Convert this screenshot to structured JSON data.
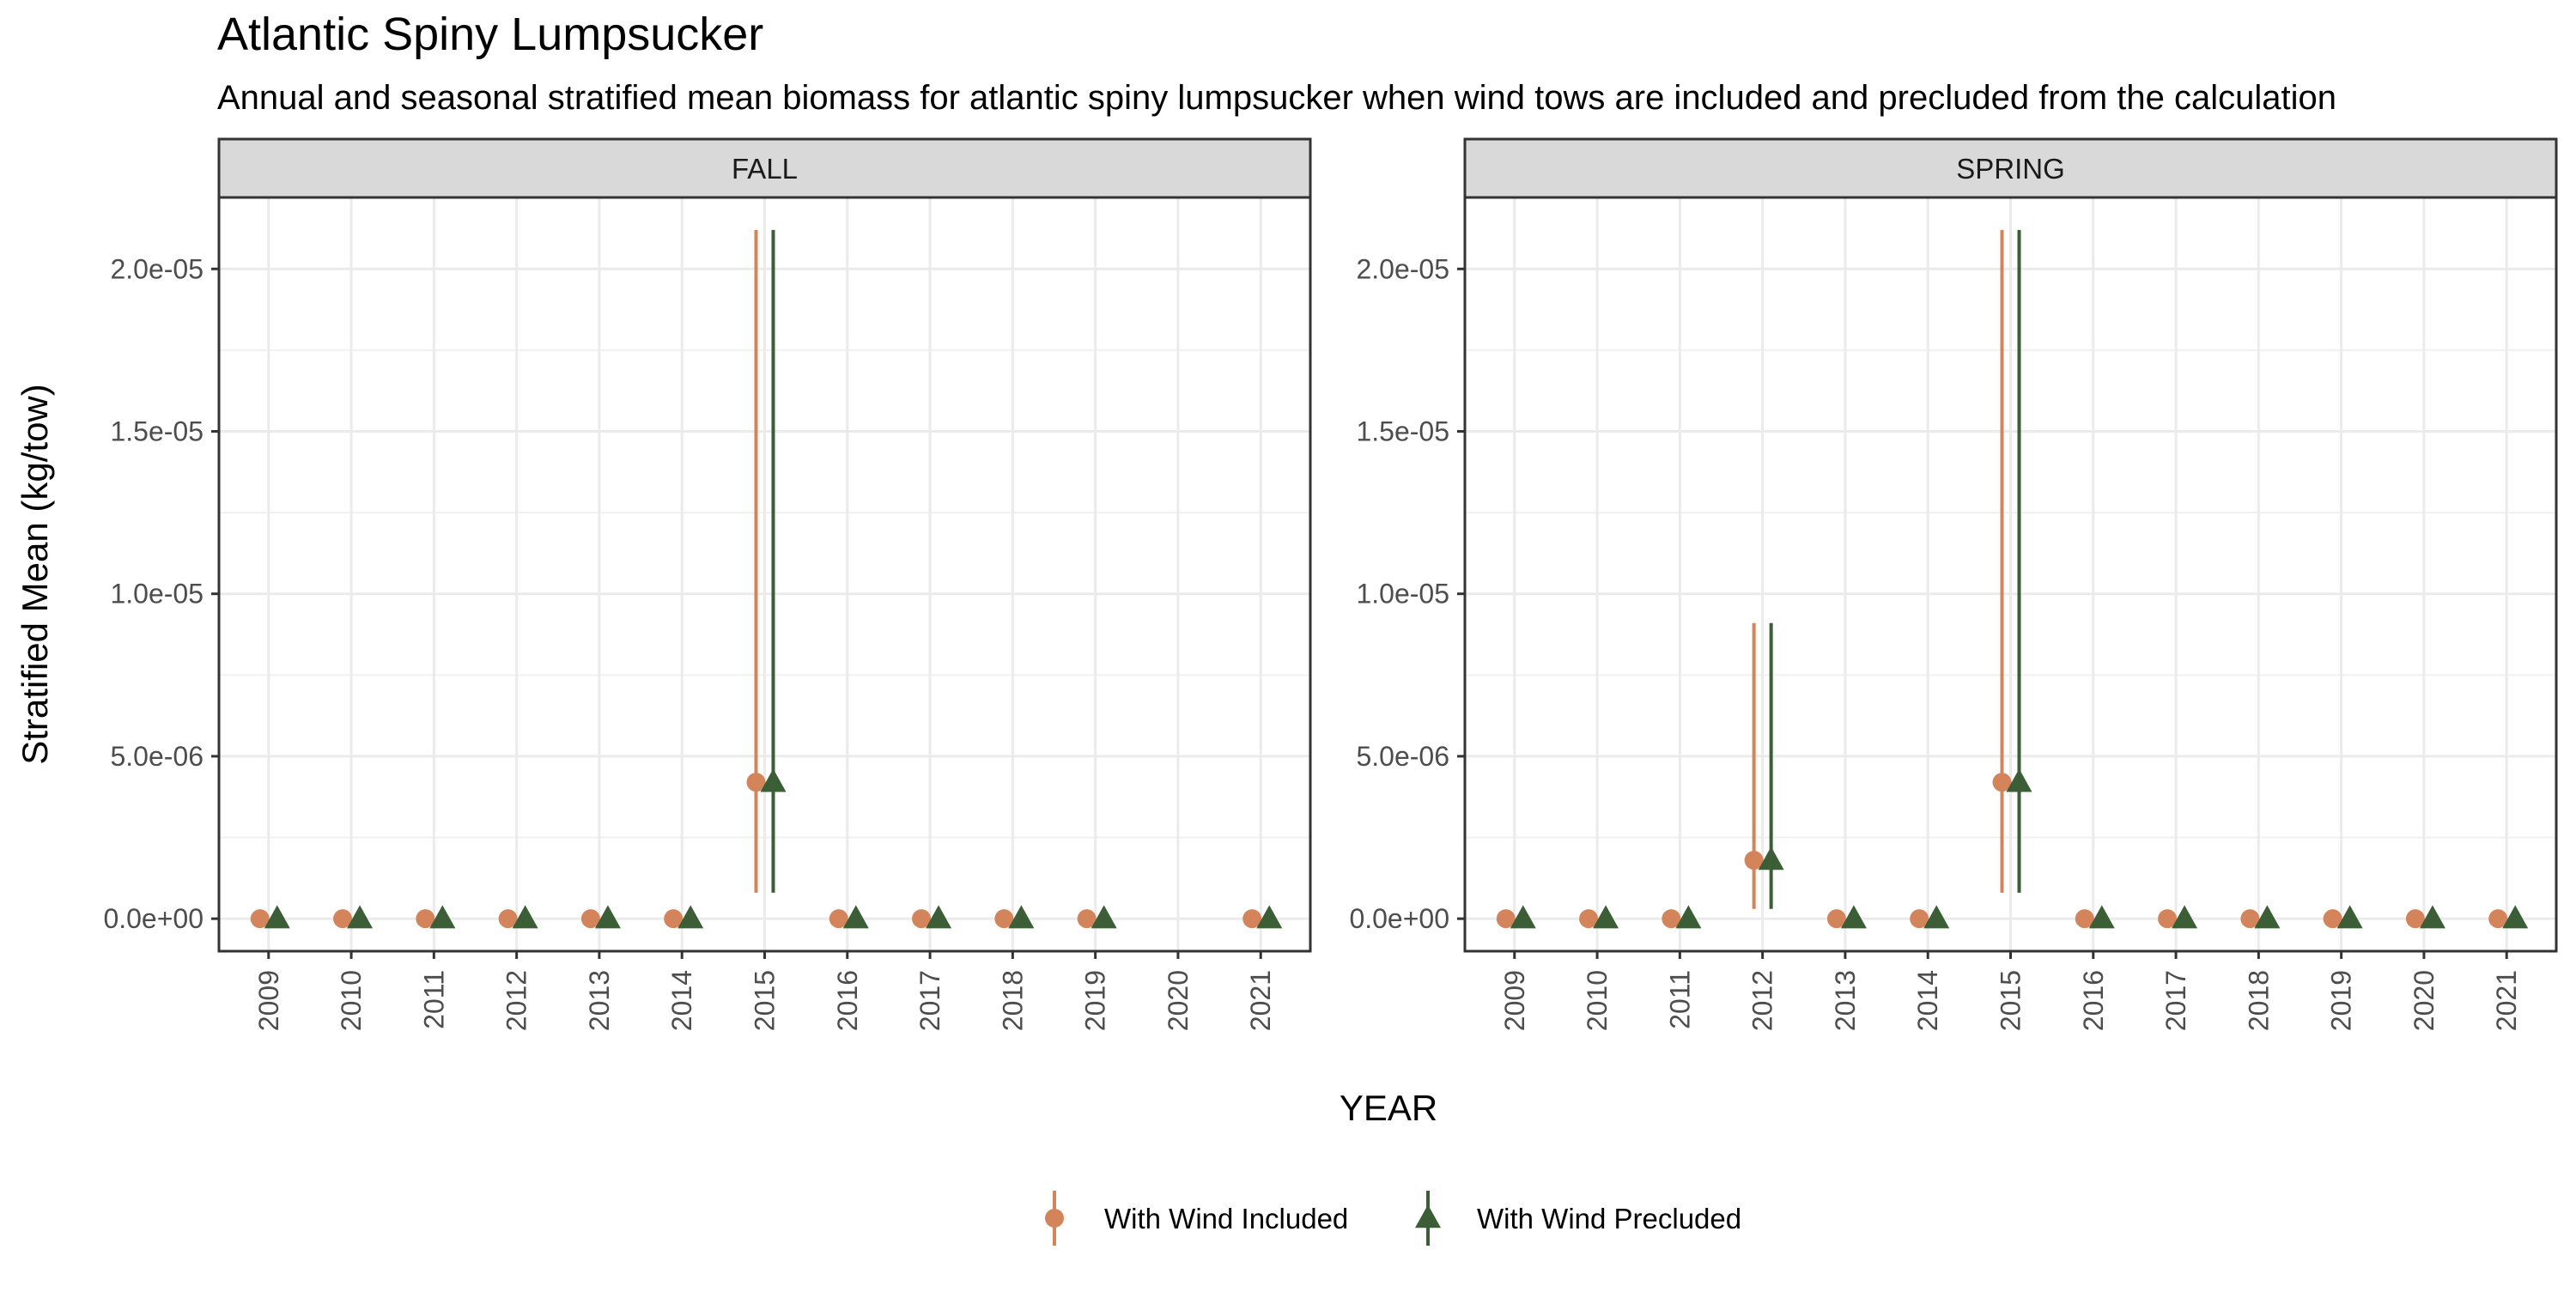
{
  "chart_data": {
    "type": "scatter",
    "title": "Atlantic Spiny Lumpsucker",
    "subtitle": "Annual and seasonal stratified mean biomass for atlantic spiny lumpsucker when wind tows are included and precluded from the calculation",
    "xlabel": "YEAR",
    "ylabel": "Stratified Mean (kg/tow)",
    "ylim": [
      -1e-06,
      2.22e-05
    ],
    "yticks": [
      0,
      5e-06,
      1e-05,
      1.5e-05,
      2e-05
    ],
    "ytick_labels": [
      "0.0e+00",
      "5.0e-06",
      "1.0e-05",
      "1.5e-05",
      "2.0e-05"
    ],
    "categories": [
      "2009",
      "2010",
      "2011",
      "2012",
      "2013",
      "2014",
      "2015",
      "2016",
      "2017",
      "2018",
      "2019",
      "2020",
      "2021"
    ],
    "grid": true,
    "legend": {
      "position": "bottom",
      "entries": [
        "With Wind Included",
        "With Wind Precluded"
      ]
    },
    "series_colors": {
      "With Wind Included": "#D4845A",
      "With Wind Precluded": "#3B5E37"
    },
    "panels": [
      {
        "label": "FALL",
        "series": [
          {
            "name": "With Wind Included",
            "marker": "circle",
            "x": [
              "2009",
              "2010",
              "2011",
              "2012",
              "2013",
              "2014",
              "2015",
              "2016",
              "2017",
              "2018",
              "2019",
              "2021"
            ],
            "y": [
              0,
              0,
              0,
              0,
              0,
              0,
              4.2e-06,
              0,
              0,
              0,
              0,
              0
            ],
            "ymin": [
              0,
              0,
              0,
              0,
              0,
              0,
              8e-07,
              0,
              0,
              0,
              0,
              0
            ],
            "ymax": [
              0,
              0,
              0,
              0,
              0,
              0,
              2.12e-05,
              0,
              0,
              0,
              0,
              0
            ]
          },
          {
            "name": "With Wind Precluded",
            "marker": "triangle",
            "x": [
              "2009",
              "2010",
              "2011",
              "2012",
              "2013",
              "2014",
              "2015",
              "2016",
              "2017",
              "2018",
              "2019",
              "2021"
            ],
            "y": [
              0,
              0,
              0,
              0,
              0,
              0,
              4.2e-06,
              0,
              0,
              0,
              0,
              0
            ],
            "ymin": [
              0,
              0,
              0,
              0,
              0,
              0,
              8e-07,
              0,
              0,
              0,
              0,
              0
            ],
            "ymax": [
              0,
              0,
              0,
              0,
              0,
              0,
              2.12e-05,
              0,
              0,
              0,
              0,
              0
            ]
          }
        ]
      },
      {
        "label": "SPRING",
        "series": [
          {
            "name": "With Wind Included",
            "marker": "circle",
            "x": [
              "2009",
              "2010",
              "2011",
              "2012",
              "2013",
              "2014",
              "2015",
              "2016",
              "2017",
              "2018",
              "2019",
              "2020",
              "2021"
            ],
            "y": [
              0,
              0,
              0,
              1.8e-06,
              0,
              0,
              4.2e-06,
              0,
              0,
              0,
              0,
              0,
              0
            ],
            "ymin": [
              0,
              0,
              0,
              3e-07,
              0,
              0,
              8e-07,
              0,
              0,
              0,
              0,
              0,
              0
            ],
            "ymax": [
              0,
              0,
              0,
              9.1e-06,
              0,
              0,
              2.12e-05,
              0,
              0,
              0,
              0,
              0,
              0
            ]
          },
          {
            "name": "With Wind Precluded",
            "marker": "triangle",
            "x": [
              "2009",
              "2010",
              "2011",
              "2012",
              "2013",
              "2014",
              "2015",
              "2016",
              "2017",
              "2018",
              "2019",
              "2020",
              "2021"
            ],
            "y": [
              0,
              0,
              0,
              1.8e-06,
              0,
              0,
              4.2e-06,
              0,
              0,
              0,
              0,
              0,
              0
            ],
            "ymin": [
              0,
              0,
              0,
              3e-07,
              0,
              0,
              8e-07,
              0,
              0,
              0,
              0,
              0,
              0
            ],
            "ymax": [
              0,
              0,
              0,
              9.1e-06,
              0,
              0,
              2.12e-05,
              0,
              0,
              0,
              0,
              0,
              0
            ]
          }
        ]
      }
    ]
  }
}
